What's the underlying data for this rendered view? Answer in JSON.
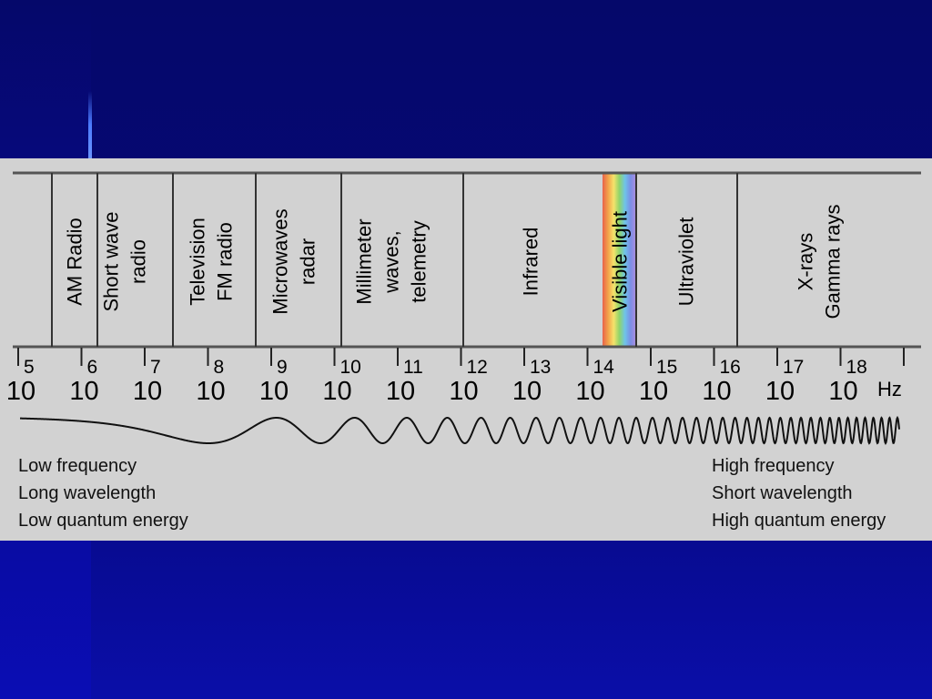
{
  "bands": [
    {
      "name": "am-radio",
      "lines": [
        "AM Radio"
      ]
    },
    {
      "name": "short-wave-radio",
      "lines": [
        "Short wave",
        "radio"
      ]
    },
    {
      "name": "television-fm-radio",
      "lines": [
        "Television",
        "FM radio"
      ]
    },
    {
      "name": "microwaves-radar",
      "lines": [
        "Microwaves",
        "radar"
      ]
    },
    {
      "name": "millimeter-waves-telemetry",
      "lines": [
        "Millimeter",
        "waves,",
        "telemetry"
      ]
    },
    {
      "name": "infrared",
      "lines": [
        "Infrared"
      ]
    },
    {
      "name": "visible-light",
      "lines": [
        "Visible light"
      ]
    },
    {
      "name": "ultraviolet",
      "lines": [
        "Ultraviolet"
      ]
    },
    {
      "name": "xrays-gamma-rays",
      "lines": [
        "X-rays",
        "Gamma rays"
      ]
    }
  ],
  "scale": {
    "base": "10",
    "exponents": [
      "5",
      "6",
      "7",
      "8",
      "9",
      "10",
      "11",
      "12",
      "13",
      "14",
      "15",
      "16",
      "17",
      "18"
    ],
    "unit": "Hz"
  },
  "notes": {
    "left": [
      "Low frequency",
      "Long wavelength",
      "Low quantum energy"
    ],
    "right": [
      "High frequency",
      "Short wavelength",
      "High quantum energy"
    ]
  },
  "colors": {
    "slide_background": "#06087a",
    "panel": "#d2d2d2",
    "visible_spectrum": [
      "#e8634a",
      "#f3a24a",
      "#f5e36b",
      "#8fd46a",
      "#6fc4e8",
      "#7a8ee6",
      "#b08ee0"
    ]
  }
}
